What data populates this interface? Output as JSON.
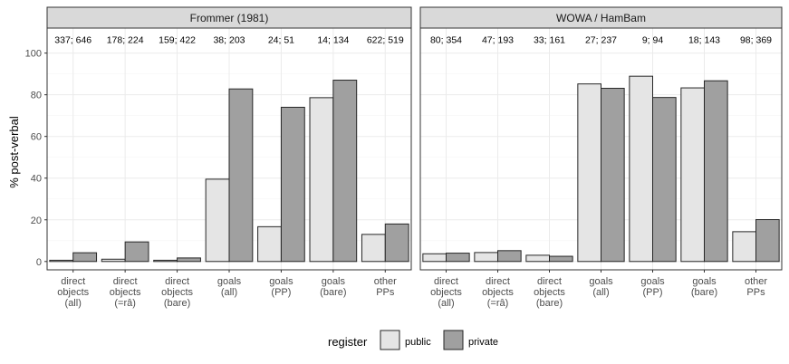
{
  "chart_data": {
    "type": "bar",
    "ylabel": "% post-verbal",
    "ylim": [
      -4,
      112
    ],
    "yticks": [
      0,
      20,
      40,
      60,
      80,
      100
    ],
    "grid": true,
    "categories": [
      [
        "direct",
        "objects",
        "(all)"
      ],
      [
        "direct",
        "objects",
        "(=râ)"
      ],
      [
        "direct",
        "objects",
        "(bare)"
      ],
      [
        "goals",
        "(all)"
      ],
      [
        "goals",
        "(PP)"
      ],
      [
        "goals",
        "(bare)"
      ],
      [
        "other",
        "PPs"
      ]
    ],
    "legend": {
      "title": "register",
      "position": "bottom",
      "entries": [
        {
          "label": "public",
          "color": "#e5e5e5"
        },
        {
          "label": "private",
          "color": "#a0a0a0"
        }
      ]
    },
    "panels": [
      {
        "title": "Frommer (1981)",
        "counts": [
          "337; 646",
          "178; 224",
          "159; 422",
          "38; 203",
          "24; 51",
          "14; 134",
          "622; 519"
        ],
        "series": [
          {
            "name": "public",
            "values": [
              0.6,
              1.1,
              0.6,
              39.5,
              16.7,
              78.6,
              13.0
            ]
          },
          {
            "name": "private",
            "values": [
              4.2,
              9.4,
              1.7,
              82.8,
              74.0,
              87.0,
              18.0
            ]
          }
        ]
      },
      {
        "title": "WOWA / HamBam",
        "counts": [
          "80; 354",
          "47; 193",
          "33; 161",
          "27; 237",
          "9; 94",
          "18; 143",
          "98; 369"
        ],
        "series": [
          {
            "name": "public",
            "values": [
              3.7,
              4.3,
              3.0,
              85.2,
              88.9,
              83.3,
              14.3
            ]
          },
          {
            "name": "private",
            "values": [
              4.0,
              5.2,
              2.5,
              83.1,
              78.7,
              86.7,
              20.1
            ]
          }
        ]
      }
    ]
  }
}
